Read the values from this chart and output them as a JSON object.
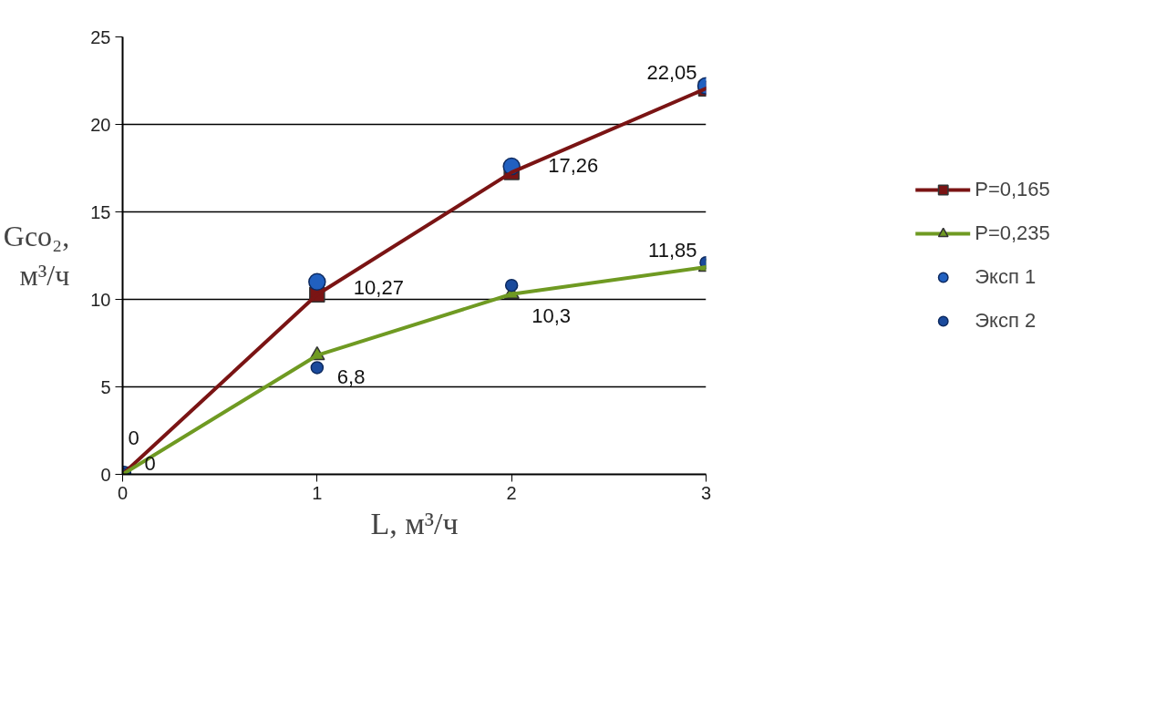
{
  "chart_data": {
    "type": "line",
    "xlabel": "L, м³/ч",
    "ylabel": "Gco₂,\nм³/ч",
    "x": [
      0,
      1,
      2,
      3
    ],
    "xlim": [
      0,
      3
    ],
    "xticks": [
      0,
      1,
      2,
      3
    ],
    "ylim": [
      0,
      25
    ],
    "yticks": [
      0,
      5,
      10,
      15,
      20,
      25
    ],
    "grid": "y",
    "legend": "right",
    "series": [
      {
        "name": "P=0,165",
        "marker": "square",
        "color": "#7a1414",
        "values": [
          0,
          10.27,
          17.26,
          22.05
        ],
        "value_labels": [
          "0",
          "10,27",
          "17,26",
          "22,05"
        ]
      },
      {
        "name": "P=0,235",
        "marker": "triangle",
        "color": "#6f9a22",
        "values": [
          0,
          6.8,
          10.3,
          11.85
        ],
        "value_labels": [
          "0",
          "6,8",
          "10,3",
          "11,85"
        ]
      },
      {
        "name": "Эксп 1",
        "type": "scatter",
        "marker": "circle",
        "color": "#2160c0",
        "values": [
          0,
          11.0,
          17.6,
          22.2
        ]
      },
      {
        "name": "Эксп 2",
        "type": "scatter",
        "marker": "circle",
        "color": "#1a4a9c",
        "values": [
          0,
          6.1,
          10.8,
          12.1
        ]
      }
    ]
  }
}
